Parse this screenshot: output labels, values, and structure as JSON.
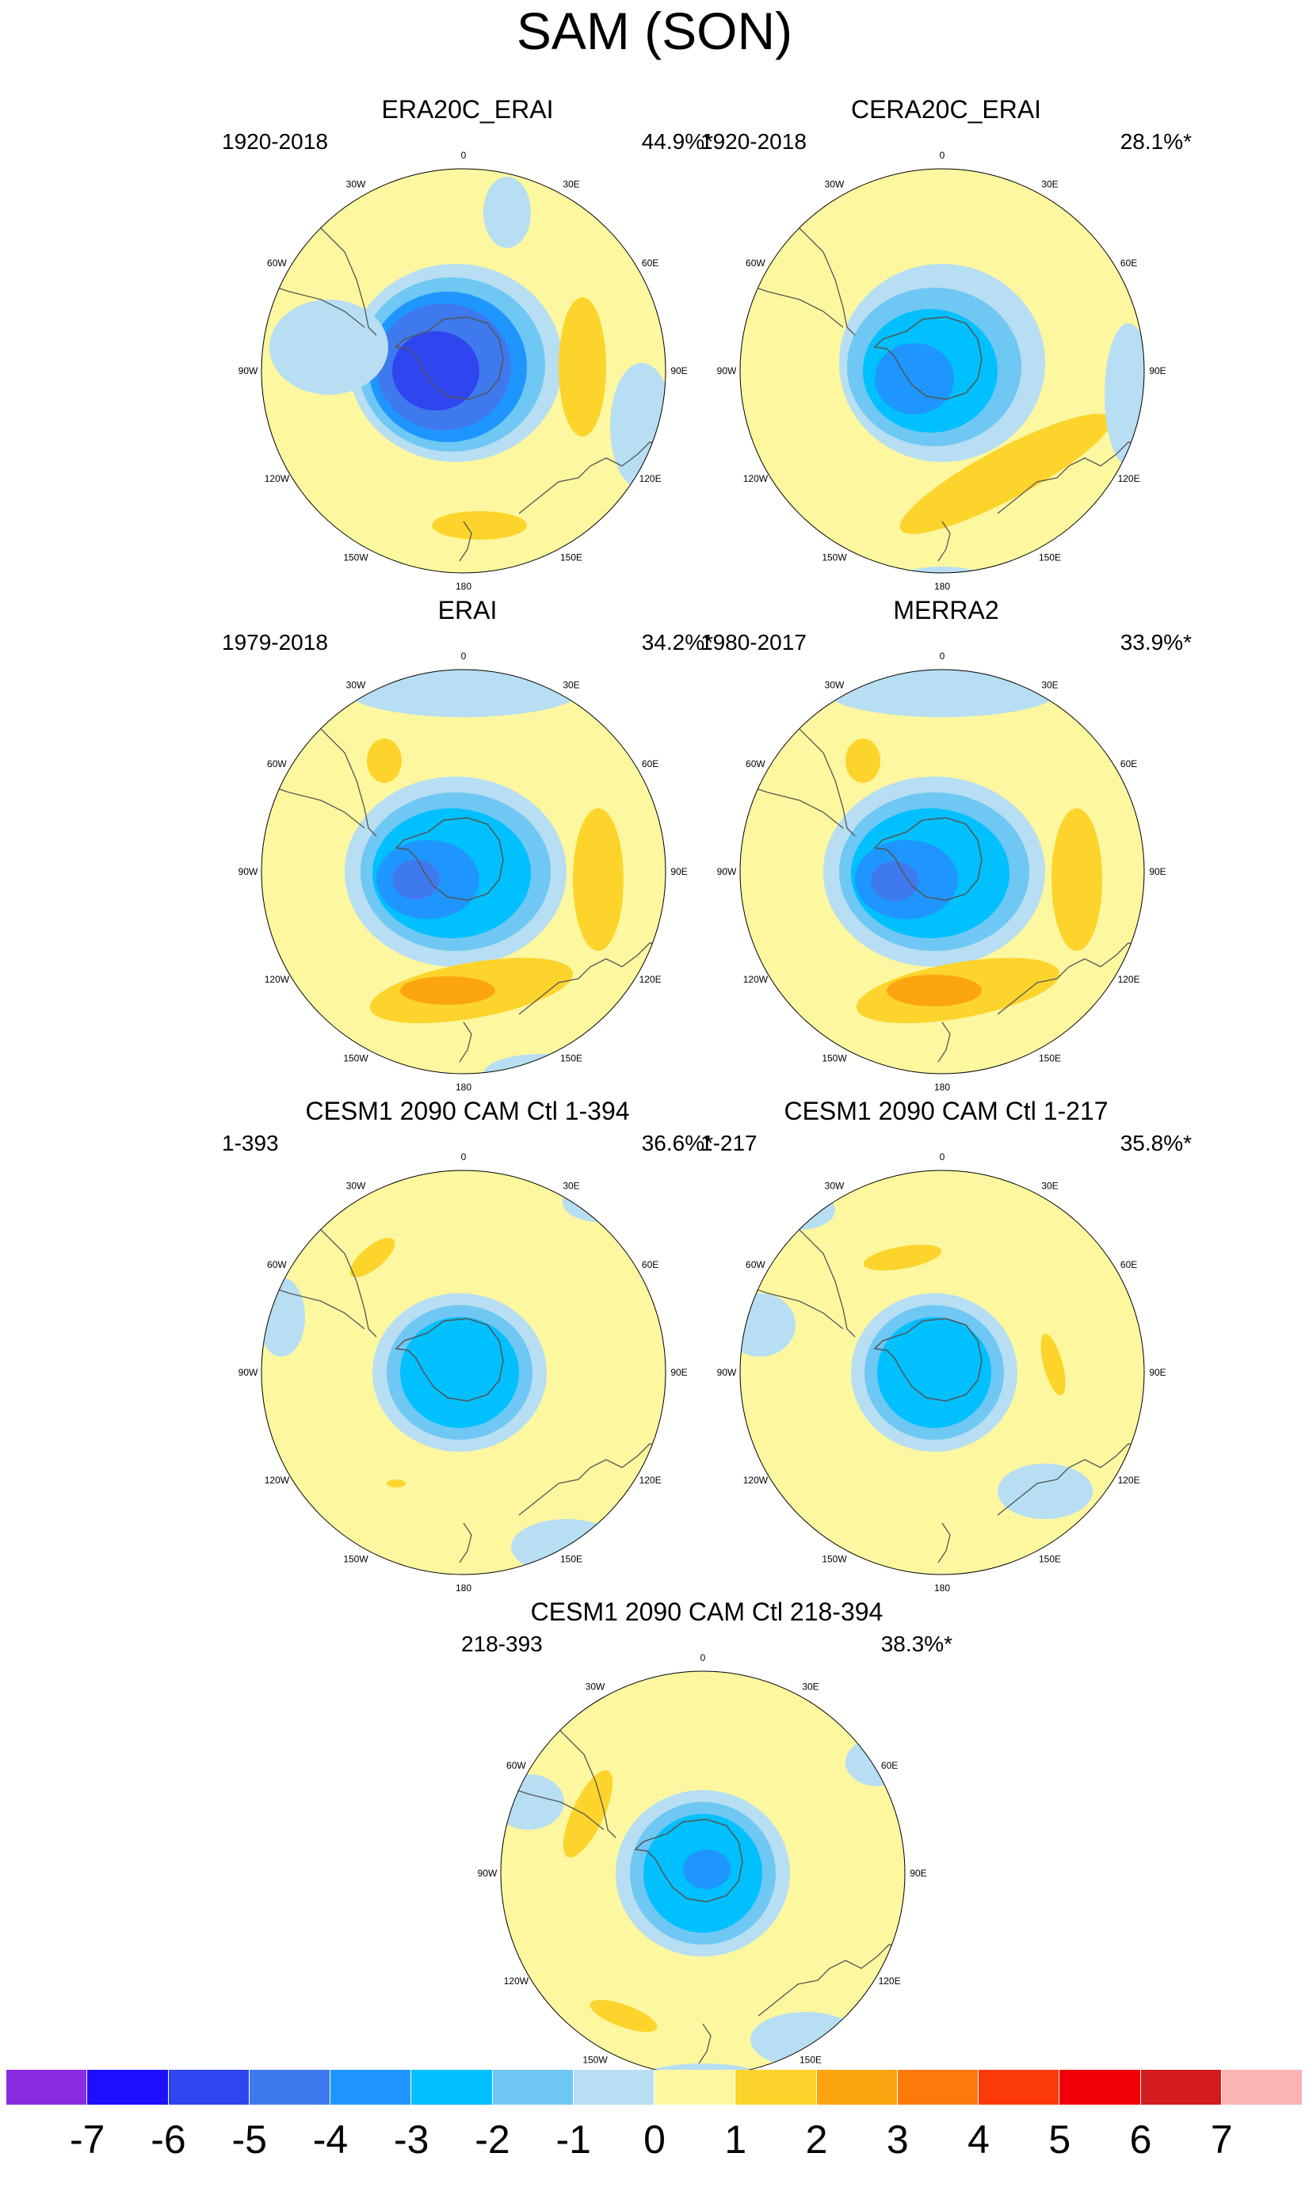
{
  "figure": {
    "title": "SAM (SON)"
  },
  "panels": [
    {
      "title": "ERA20C_ERAI",
      "period": "1920-2018",
      "percent": "44.9%*"
    },
    {
      "title": "CERA20C_ERAI",
      "period": "1920-2018",
      "percent": "28.1%*"
    },
    {
      "title": "ERAI",
      "period": "1979-2018",
      "percent": "34.2%*"
    },
    {
      "title": "MERRA2",
      "period": "1980-2017",
      "percent": "33.9%*"
    },
    {
      "title": "CESM1 2090 CAM Ctl 1-394",
      "period": "1-393",
      "percent": "36.6%*"
    },
    {
      "title": "CESM1 2090 CAM Ctl 1-217",
      "period": "1-217",
      "percent": "35.8%*"
    },
    {
      "title": "CESM1 2090 CAM Ctl 218-394",
      "period": "218-393",
      "percent": "38.3%*"
    }
  ],
  "longitude_labels": [
    "0",
    "30E",
    "60E",
    "90E",
    "120E",
    "150E",
    "180",
    "150W",
    "120W",
    "90W",
    "60W",
    "30W"
  ],
  "colorbar": {
    "labels": [
      "-7",
      "-6",
      "-5",
      "-4",
      "-3",
      "-2",
      "-1",
      "0",
      "1",
      "2",
      "3",
      "4",
      "5",
      "6",
      "7"
    ],
    "colors": [
      "#8a2be2",
      "#1e0fff",
      "#2e45f0",
      "#3f79ee",
      "#1f96ff",
      "#00c0ff",
      "#6fc7f3",
      "#b7def2",
      "#fdf7a0",
      "#fdd42c",
      "#fca510",
      "#fd7a0d",
      "#fd3a0a",
      "#f20008",
      "#d41b20",
      "#fbb4b4"
    ]
  },
  "colors": {
    "negative_1": "#b7def2",
    "negative_2": "#6fc7f3",
    "negative_3": "#00c0ff",
    "negative_4": "#1f96ff",
    "negative_5": "#3f79ee",
    "negative_6": "#2e45f0",
    "neutral": "#fdf7a0",
    "positive_1": "#fdd42c",
    "positive_2": "#fca510",
    "coast": "#555555"
  }
}
